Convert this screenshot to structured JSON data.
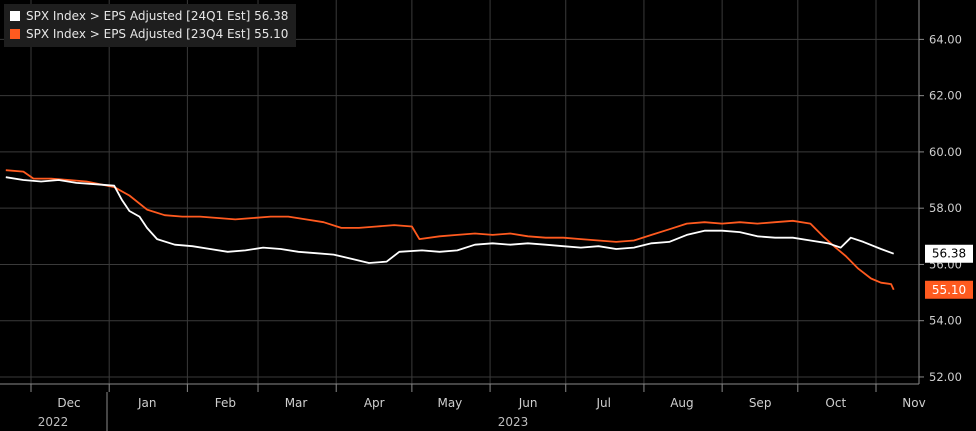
{
  "chart_data": {
    "type": "line",
    "title": "",
    "xlabel": "",
    "ylabel": "",
    "ylim": [
      51.75,
      65.4
    ],
    "y_ticks": [
      "52.00",
      "54.00",
      "56.00",
      "58.00",
      "60.00",
      "62.00",
      "64.00"
    ],
    "x_ticks": [
      "Dec",
      "Jan",
      "Feb",
      "Mar",
      "Apr",
      "May",
      "Jun",
      "Jul",
      "Aug",
      "Sep",
      "Oct",
      "Nov"
    ],
    "years": [
      "2022",
      "2023"
    ],
    "grid": true,
    "legend_position": "top-left",
    "series": [
      {
        "name": "SPX Index > EPS Adjusted [24Q1 Est]",
        "last_value": "56.38",
        "color": "#ffffff",
        "points": [
          [
            "2022-11-21",
            59.1
          ],
          [
            "2022-11-28",
            59.0
          ],
          [
            "2022-12-05",
            58.95
          ],
          [
            "2022-12-12",
            59.0
          ],
          [
            "2022-12-19",
            58.9
          ],
          [
            "2022-12-27",
            58.85
          ],
          [
            "2023-01-03",
            58.8
          ],
          [
            "2023-01-06",
            58.3
          ],
          [
            "2023-01-09",
            57.9
          ],
          [
            "2023-01-13",
            57.7
          ],
          [
            "2023-01-16",
            57.3
          ],
          [
            "2023-01-20",
            56.9
          ],
          [
            "2023-01-27",
            56.7
          ],
          [
            "2023-02-03",
            56.65
          ],
          [
            "2023-02-10",
            56.55
          ],
          [
            "2023-02-17",
            56.45
          ],
          [
            "2023-02-24",
            56.5
          ],
          [
            "2023-03-03",
            56.6
          ],
          [
            "2023-03-10",
            56.55
          ],
          [
            "2023-03-17",
            56.45
          ],
          [
            "2023-03-24",
            56.4
          ],
          [
            "2023-03-31",
            56.35
          ],
          [
            "2023-04-07",
            56.2
          ],
          [
            "2023-04-14",
            56.05
          ],
          [
            "2023-04-21",
            56.1
          ],
          [
            "2023-04-26",
            56.45
          ],
          [
            "2023-05-05",
            56.5
          ],
          [
            "2023-05-12",
            56.45
          ],
          [
            "2023-05-19",
            56.5
          ],
          [
            "2023-05-26",
            56.7
          ],
          [
            "2023-06-02",
            56.75
          ],
          [
            "2023-06-09",
            56.7
          ],
          [
            "2023-06-16",
            56.75
          ],
          [
            "2023-06-23",
            56.7
          ],
          [
            "2023-06-30",
            56.65
          ],
          [
            "2023-07-07",
            56.6
          ],
          [
            "2023-07-14",
            56.65
          ],
          [
            "2023-07-21",
            56.55
          ],
          [
            "2023-07-28",
            56.6
          ],
          [
            "2023-08-04",
            56.75
          ],
          [
            "2023-08-11",
            56.8
          ],
          [
            "2023-08-18",
            57.05
          ],
          [
            "2023-08-25",
            57.2
          ],
          [
            "2023-09-01",
            57.2
          ],
          [
            "2023-09-08",
            57.15
          ],
          [
            "2023-09-15",
            57.0
          ],
          [
            "2023-09-22",
            56.95
          ],
          [
            "2023-09-29",
            56.95
          ],
          [
            "2023-10-06",
            56.85
          ],
          [
            "2023-10-13",
            56.75
          ],
          [
            "2023-10-18",
            56.6
          ],
          [
            "2023-10-22",
            56.95
          ],
          [
            "2023-10-27",
            56.8
          ],
          [
            "2023-11-03",
            56.55
          ],
          [
            "2023-11-08",
            56.38
          ]
        ]
      },
      {
        "name": "SPX Index > EPS Adjusted [23Q4 Est]",
        "last_value": "55.10",
        "color": "#ff5a1f",
        "points": [
          [
            "2022-11-21",
            59.35
          ],
          [
            "2022-11-28",
            59.3
          ],
          [
            "2022-12-02",
            59.05
          ],
          [
            "2022-12-09",
            59.05
          ],
          [
            "2022-12-16",
            59.0
          ],
          [
            "2022-12-23",
            58.95
          ],
          [
            "2023-01-03",
            58.75
          ],
          [
            "2023-01-09",
            58.45
          ],
          [
            "2023-01-16",
            57.95
          ],
          [
            "2023-01-23",
            57.75
          ],
          [
            "2023-01-30",
            57.7
          ],
          [
            "2023-02-06",
            57.7
          ],
          [
            "2023-02-13",
            57.65
          ],
          [
            "2023-02-20",
            57.6
          ],
          [
            "2023-02-27",
            57.65
          ],
          [
            "2023-03-06",
            57.7
          ],
          [
            "2023-03-13",
            57.7
          ],
          [
            "2023-03-20",
            57.6
          ],
          [
            "2023-03-27",
            57.5
          ],
          [
            "2023-04-03",
            57.3
          ],
          [
            "2023-04-10",
            57.3
          ],
          [
            "2023-04-17",
            57.35
          ],
          [
            "2023-04-24",
            57.4
          ],
          [
            "2023-05-01",
            57.35
          ],
          [
            "2023-05-04",
            56.9
          ],
          [
            "2023-05-12",
            57.0
          ],
          [
            "2023-05-19",
            57.05
          ],
          [
            "2023-05-26",
            57.1
          ],
          [
            "2023-06-02",
            57.05
          ],
          [
            "2023-06-09",
            57.1
          ],
          [
            "2023-06-16",
            57.0
          ],
          [
            "2023-06-23",
            56.95
          ],
          [
            "2023-06-30",
            56.95
          ],
          [
            "2023-07-07",
            56.9
          ],
          [
            "2023-07-14",
            56.85
          ],
          [
            "2023-07-21",
            56.8
          ],
          [
            "2023-07-28",
            56.85
          ],
          [
            "2023-08-04",
            57.05
          ],
          [
            "2023-08-11",
            57.25
          ],
          [
            "2023-08-18",
            57.45
          ],
          [
            "2023-08-25",
            57.5
          ],
          [
            "2023-09-01",
            57.45
          ],
          [
            "2023-09-08",
            57.5
          ],
          [
            "2023-09-15",
            57.45
          ],
          [
            "2023-09-22",
            57.5
          ],
          [
            "2023-09-29",
            57.55
          ],
          [
            "2023-10-06",
            57.45
          ],
          [
            "2023-10-11",
            57.0
          ],
          [
            "2023-10-16",
            56.6
          ],
          [
            "2023-10-20",
            56.3
          ],
          [
            "2023-10-25",
            55.85
          ],
          [
            "2023-10-30",
            55.5
          ],
          [
            "2023-11-03",
            55.35
          ],
          [
            "2023-11-07",
            55.3
          ],
          [
            "2023-11-08",
            55.1
          ]
        ]
      }
    ]
  }
}
